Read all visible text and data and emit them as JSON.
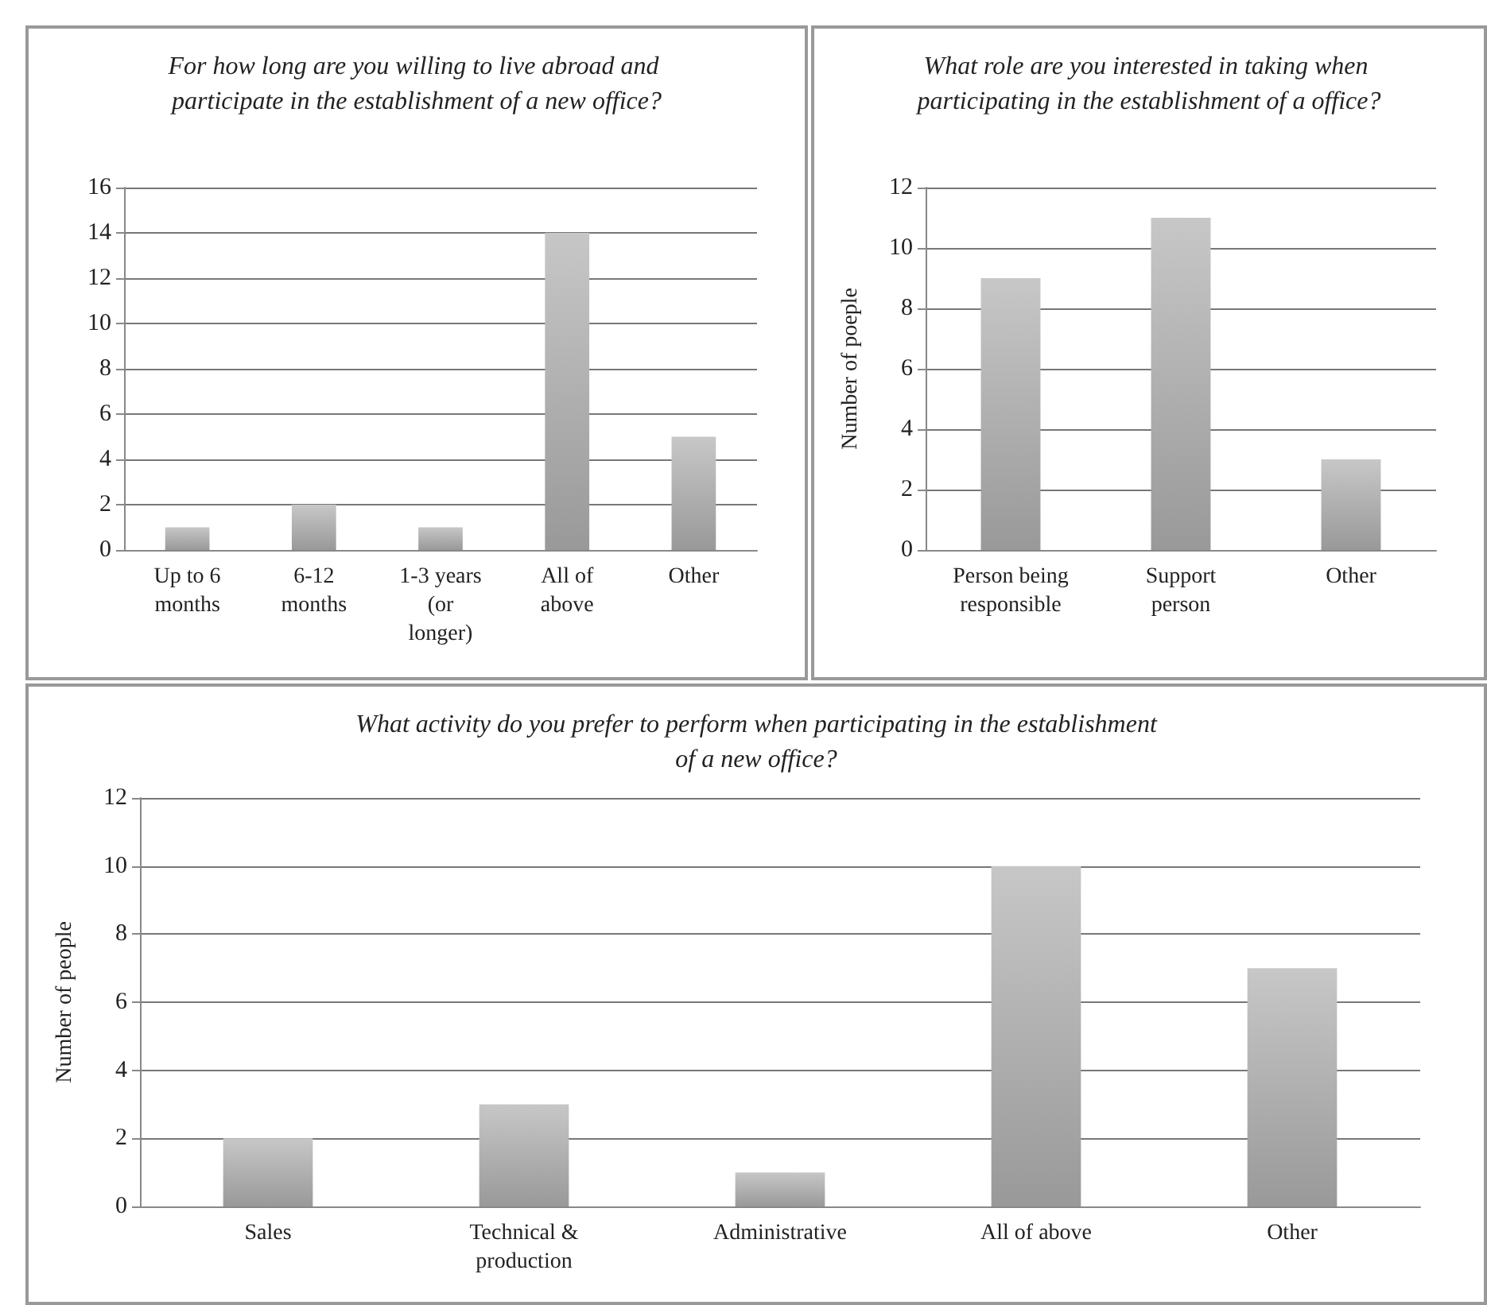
{
  "chart_data": [
    {
      "type": "bar",
      "title": "For how long are you willing to live abroad and participate in the establishment of a new office?",
      "categories": [
        "Up to 6\nmonths",
        "6-12\nmonths",
        "1-3 years\n(or\nlonger)",
        "All of\nabove",
        "Other"
      ],
      "values": [
        1,
        2,
        1,
        14,
        5
      ],
      "color": "#999999",
      "ylim": [
        0,
        16
      ],
      "yticks": [
        0,
        2,
        4,
        6,
        8,
        10,
        12,
        14,
        16
      ],
      "grid": "y"
    },
    {
      "type": "bar",
      "title": "What role are you interested in taking when participating in the establishment of a office?",
      "ylabel": "Number of poeple",
      "categories": [
        "Person being\nresponsible",
        "Support\nperson",
        "Other"
      ],
      "values": [
        9,
        11,
        3
      ],
      "color": "#999999",
      "ylim": [
        0,
        12
      ],
      "yticks": [
        0,
        2,
        4,
        6,
        8,
        10,
        12
      ],
      "grid": "y"
    },
    {
      "type": "bar",
      "title": "What activity do you prefer to perform when participating in the establishment\nof a new office?",
      "ylabel": "Number of people",
      "categories": [
        "Sales",
        "Technical &\nproduction",
        "Administrative",
        "All of above",
        "Other"
      ],
      "values": [
        2,
        3,
        1,
        10,
        7
      ],
      "color": "#999999",
      "ylim": [
        0,
        12
      ],
      "yticks": [
        0,
        2,
        4,
        6,
        8,
        10,
        12
      ],
      "grid": "y"
    }
  ]
}
